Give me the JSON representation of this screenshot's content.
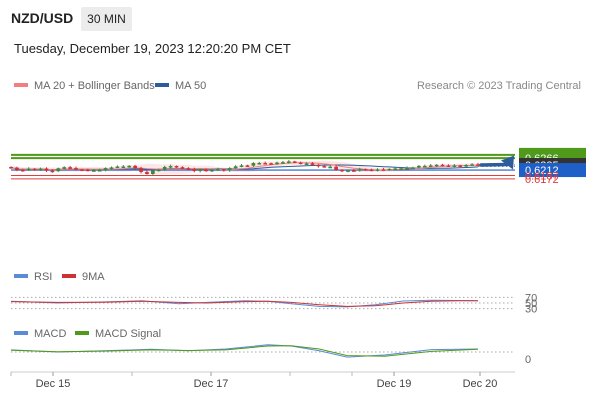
{
  "header": {
    "symbol": "NZD/USD",
    "timeframe": "30 MIN",
    "datetime": "Tuesday, December 19, 2023 12:20:20 PM CET"
  },
  "legend": {
    "ma20": "MA 20 + Bollinger Bands",
    "ma50": "MA 50",
    "credit": "Research © 2023 Trading Central",
    "rsi": "RSI",
    "ma9": "9MA",
    "macd": "MACD",
    "macd_signal": "MACD Signal"
  },
  "colors": {
    "ma20": "#f08080",
    "bollinger_fill": "#fde3e3",
    "ma50": "#2c5c9a",
    "resistance": "#4f9a1a",
    "support_line": "#1e5fc8",
    "support_minor": "#e03c3c",
    "current_price": "#333333",
    "arrow": "#2c5c9a",
    "candle_up": "#3a8a3a",
    "candle_down": "#cc3333",
    "rsi": "#5b8ad8",
    "rsi_ma": "#cc3333",
    "macd": "#5b8ad8",
    "macd_signal": "#4f9a1a"
  },
  "chart_data": {
    "type": "candlestick",
    "instrument": "NZD/USD",
    "timeframe": "30 MIN",
    "x_ticks": [
      "Dec 15",
      "Dec 17",
      "Dec 19",
      "Dec 20"
    ],
    "price_levels": [
      {
        "value": 0.6281,
        "label": "0.6281",
        "role": "resistance"
      },
      {
        "value": 0.6266,
        "label": "0.6266",
        "role": "resistance"
      },
      {
        "value": 0.6235,
        "label": "0.6235",
        "role": "current"
      },
      {
        "value": 0.6212,
        "label": "0.6212",
        "role": "support"
      },
      {
        "value": 0.6187,
        "label": "0.6187",
        "role": "support-minor"
      },
      {
        "value": 0.6172,
        "label": "0.6172",
        "role": "support-minor"
      }
    ],
    "close_path": [
      0.6223,
      0.6213,
      0.6211,
      0.6218,
      0.6213,
      0.6219,
      0.6209,
      0.6207,
      0.622,
      0.6225,
      0.6221,
      0.6215,
      0.6214,
      0.6209,
      0.6211,
      0.6212,
      0.6221,
      0.6224,
      0.6228,
      0.6228,
      0.6231,
      0.6221,
      0.6203,
      0.6194,
      0.621,
      0.6214,
      0.6226,
      0.623,
      0.6225,
      0.622,
      0.6216,
      0.6208,
      0.6215,
      0.6207,
      0.6213,
      0.6216,
      0.6211,
      0.6221,
      0.6229,
      0.6233,
      0.6232,
      0.6244,
      0.6244,
      0.6243,
      0.624,
      0.6246,
      0.6248,
      0.6251,
      0.6246,
      0.6242,
      0.6242,
      0.6236,
      0.623,
      0.6226,
      0.6227,
      0.6213,
      0.6209,
      0.6211,
      0.6209,
      0.6216,
      0.6214,
      0.6213,
      0.6215,
      0.6213,
      0.6217,
      0.6219,
      0.622,
      0.6222,
      0.6224,
      0.6231,
      0.6231,
      0.6233,
      0.6236,
      0.6233,
      0.623,
      0.6233,
      0.6231,
      0.6235,
      0.6238,
      0.6235
    ],
    "rsi": {
      "levels": [
        70,
        50,
        30
      ],
      "x_norm": [
        0,
        0.1,
        0.2,
        0.28,
        0.36,
        0.42,
        0.5,
        0.55,
        0.6,
        0.66,
        0.72,
        0.78,
        0.84,
        0.9,
        0.96,
        1.0
      ],
      "values": [
        56,
        50,
        54,
        58,
        47,
        52,
        58,
        56,
        47,
        38,
        36,
        44,
        57,
        60,
        59,
        58
      ],
      "ma_values": [
        55,
        52,
        53,
        56,
        52,
        50,
        55,
        56,
        52,
        44,
        38,
        40,
        50,
        56,
        58,
        58
      ]
    },
    "macd": {
      "zero_label": "0",
      "x_norm": [
        0,
        0.1,
        0.2,
        0.3,
        0.38,
        0.46,
        0.55,
        0.6,
        0.66,
        0.72,
        0.8,
        0.9,
        1.0
      ],
      "values": [
        0.35,
        0.0,
        0.2,
        0.45,
        0.2,
        0.5,
        1.2,
        1.0,
        0.2,
        -0.85,
        -0.5,
        0.4,
        0.5
      ],
      "signal": [
        0.3,
        0.05,
        0.15,
        0.35,
        0.25,
        0.35,
        1.0,
        1.05,
        0.5,
        -0.6,
        -0.7,
        0.1,
        0.45
      ]
    }
  }
}
